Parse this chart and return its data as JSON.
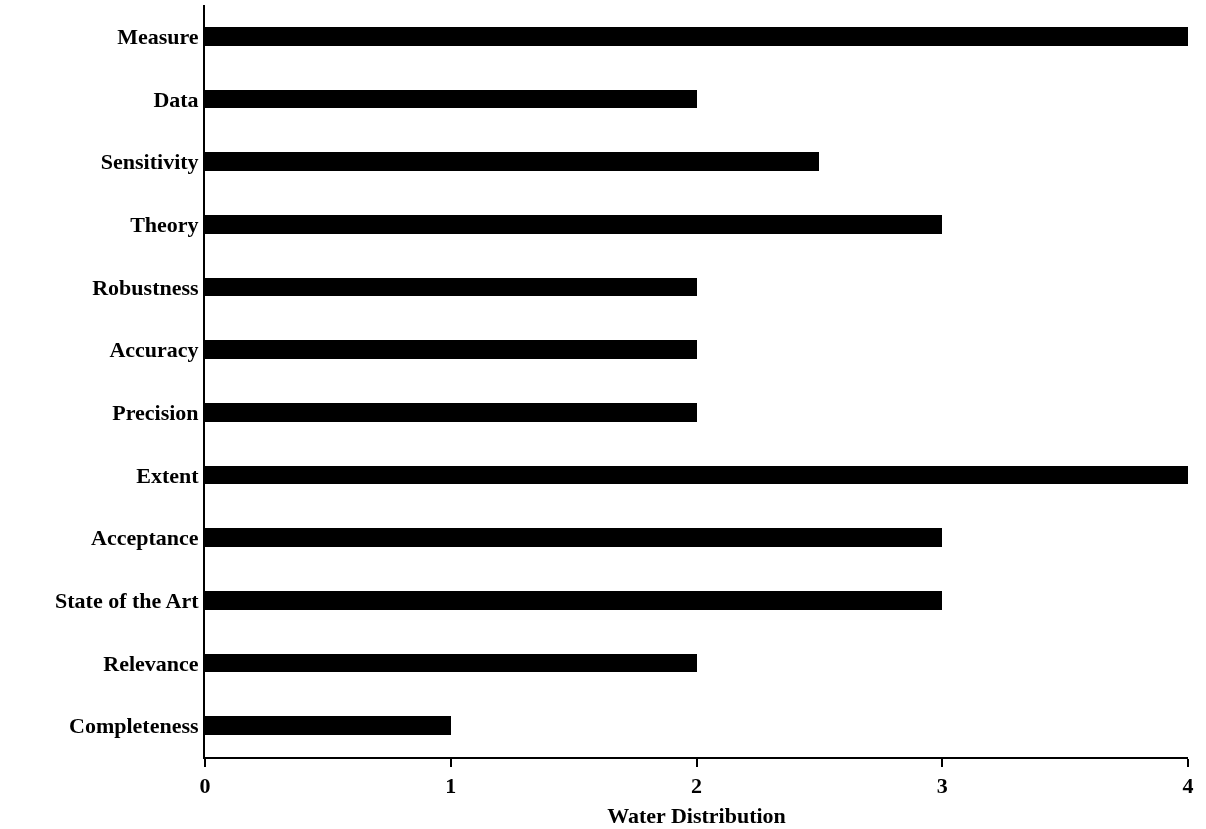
{
  "chart_data": {
    "type": "bar",
    "orientation": "horizontal",
    "xlabel": "Water Distribution",
    "categories": [
      "Measure",
      "Data",
      "Sensitivity",
      "Theory",
      "Robustness",
      "Accuracy",
      "Precision",
      "Extent",
      "Acceptance",
      "State of the Art",
      "Relevance",
      "Completeness"
    ],
    "values": [
      4,
      2,
      2.5,
      3,
      2,
      2,
      2,
      4,
      3,
      3,
      2,
      1
    ],
    "color": "#000000",
    "xlim": [
      0,
      4
    ],
    "xticks": [
      0,
      1,
      2,
      3,
      4
    ]
  }
}
